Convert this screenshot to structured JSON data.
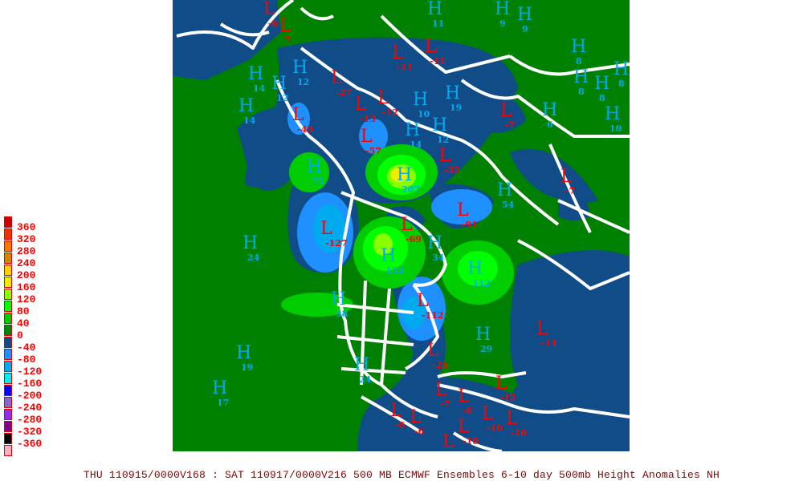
{
  "caption": "THU 110915/0000V168 : SAT 110917/0000V216  500 MB ECMWF Ensembles 6-10 day 500mb Height Anomalies NH",
  "legend": {
    "labels": [
      "360",
      "320",
      "280",
      "240",
      "200",
      "160",
      "120",
      "80",
      "40",
      "0",
      "-40",
      "-80",
      "-120",
      "-160",
      "-200",
      "-240",
      "-280",
      "-320",
      "-360"
    ],
    "colors": [
      "#cc0000",
      "#ee3300",
      "#ff7700",
      "#cc8800",
      "#ffd000",
      "#f0ee00",
      "#88ff00",
      "#00ff00",
      "#00cc00",
      "#008800",
      "#104c88",
      "#1e90ff",
      "#00aaee",
      "#00eeee",
      "#0000ff",
      "#8866cc",
      "#9030ee",
      "#880088",
      "#000000",
      "#ffb0c0"
    ]
  },
  "map_colors": {
    "background": "#008000",
    "anom_neg40": "#104c88",
    "anom_neg80": "#1e90ff",
    "anom_neg120": "#00aaee",
    "anom_pos40": "#00cc00",
    "anom_pos80": "#00ff00",
    "anom_pos120": "#88ff00",
    "anom_pos160": "#f0ee00",
    "coast": "#ffffff",
    "high": "#00aaee",
    "low": "#ff0000"
  },
  "markers": [
    {
      "type": "L",
      "value": "7"
    },
    {
      "type": "L",
      "value": "-6"
    },
    {
      "type": "H",
      "value": "11"
    },
    {
      "type": "H",
      "value": "9"
    },
    {
      "type": "H",
      "value": "9"
    },
    {
      "type": "L",
      "value": "-11"
    },
    {
      "type": "L",
      "value": "-11"
    },
    {
      "type": "L",
      "value": "-27"
    },
    {
      "type": "H",
      "value": "12"
    },
    {
      "type": "H",
      "value": "12"
    },
    {
      "type": "H",
      "value": "14"
    },
    {
      "type": "H",
      "value": "14"
    },
    {
      "type": "L",
      "value": "-49"
    },
    {
      "type": "L",
      "value": "-13"
    },
    {
      "type": "L",
      "value": "-12"
    },
    {
      "type": "L",
      "value": "-57"
    },
    {
      "type": "H",
      "value": "10"
    },
    {
      "type": "H",
      "value": "19"
    },
    {
      "type": "H",
      "value": "14"
    },
    {
      "type": "H",
      "value": "12"
    },
    {
      "type": "L",
      "value": "-7"
    },
    {
      "type": "H",
      "value": "6"
    },
    {
      "type": "H",
      "value": "8"
    },
    {
      "type": "H",
      "value": "8"
    },
    {
      "type": "H",
      "value": "8"
    },
    {
      "type": "H",
      "value": "8"
    },
    {
      "type": "H",
      "value": "10"
    },
    {
      "type": "L",
      "value": "-32"
    },
    {
      "type": "L",
      "value": "-7"
    },
    {
      "type": "H",
      "value": "75"
    },
    {
      "type": "H",
      "value": "207"
    },
    {
      "type": "L",
      "value": "-127"
    },
    {
      "type": "L",
      "value": "-69"
    },
    {
      "type": "L",
      "value": "-91"
    },
    {
      "type": "H",
      "value": "34"
    },
    {
      "type": "H",
      "value": "54"
    },
    {
      "type": "H",
      "value": "24"
    },
    {
      "type": "H",
      "value": "153"
    },
    {
      "type": "H",
      "value": "112"
    },
    {
      "type": "H",
      "value": "58"
    },
    {
      "type": "L",
      "value": "-112"
    },
    {
      "type": "H",
      "value": "19"
    },
    {
      "type": "H",
      "value": "17"
    },
    {
      "type": "H",
      "value": "24"
    },
    {
      "type": "H",
      "value": "29"
    },
    {
      "type": "L",
      "value": "-14"
    },
    {
      "type": "L",
      "value": "-25"
    },
    {
      "type": "L",
      "value": "-12"
    },
    {
      "type": "L",
      "value": "-7"
    },
    {
      "type": "L",
      "value": "-6"
    },
    {
      "type": "L",
      "value": "-6"
    },
    {
      "type": "L",
      "value": "-6"
    },
    {
      "type": "L",
      "value": "-10"
    },
    {
      "type": "L",
      "value": "-10"
    },
    {
      "type": "L",
      "value": "-10"
    },
    {
      "type": "L",
      "value": ""
    }
  ]
}
